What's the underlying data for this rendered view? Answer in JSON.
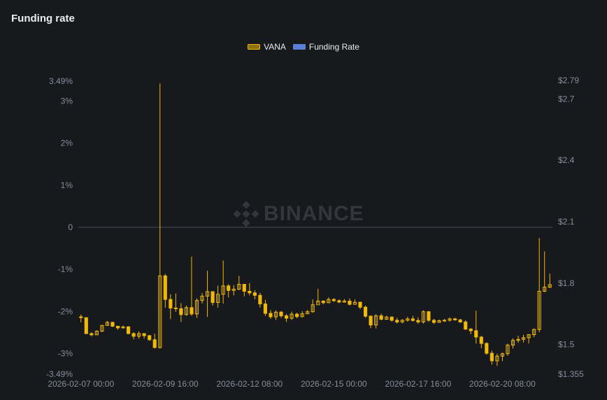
{
  "title": "Funding rate",
  "colors": {
    "price": "#f0b90b",
    "price_fill": "rgba(240,185,11,0.55)",
    "funding_rate": "#5b7fd6",
    "grid": "#474d57",
    "axis_text": "#848e9c",
    "watermark": "#34363d"
  },
  "watermark": "BINANCE",
  "chart_data": {
    "type": "candlestick",
    "legend": [
      "VANA",
      "Funding Rate"
    ],
    "legend_placement": "top-center",
    "left_axis": {
      "min": -3.49,
      "max": 3.49,
      "ticks": [
        "3.49%",
        "3%",
        "2%",
        "1%",
        "0",
        "-1%",
        "-2%",
        "-3%",
        "-3.49%"
      ]
    },
    "right_axis": {
      "min": 1.355,
      "max": 2.79,
      "ticks": [
        "$2.79",
        "$2.7",
        "$2.4",
        "$2.1",
        "$1.8",
        "$1.5",
        "$1.355"
      ]
    },
    "x_ticks": [
      "2026-02-07 00:00",
      "2026-02-09 16:00",
      "2026-02-12 08:00",
      "2026-02-15 00:00",
      "2026-02-17 16:00",
      "2026-02-20 08:00"
    ],
    "x_range": {
      "start": "2026-02-07 00:00",
      "interval_hours": 4,
      "count": 90
    },
    "zero_line": true,
    "funding_rate": [],
    "candles": [
      [
        1.635,
        1.631,
        1.646,
        1.608
      ],
      [
        1.631,
        1.553,
        1.631,
        1.551
      ],
      [
        1.553,
        1.547,
        1.559,
        1.54
      ],
      [
        1.547,
        1.565,
        1.569,
        1.548
      ],
      [
        1.565,
        1.593,
        1.596,
        1.56
      ],
      [
        1.593,
        1.608,
        1.615,
        1.592
      ],
      [
        1.608,
        1.589,
        1.611,
        1.585
      ],
      [
        1.589,
        1.581,
        1.591,
        1.572
      ],
      [
        1.581,
        1.586,
        1.592,
        1.577
      ],
      [
        1.586,
        1.553,
        1.59,
        1.55
      ],
      [
        1.553,
        1.54,
        1.56,
        1.525
      ],
      [
        1.54,
        1.553,
        1.564,
        1.528
      ],
      [
        1.553,
        1.543,
        1.555,
        1.529
      ],
      [
        1.543,
        1.523,
        1.546,
        1.518
      ],
      [
        1.523,
        1.485,
        1.553,
        1.48
      ],
      [
        1.485,
        1.835,
        2.775,
        1.48
      ],
      [
        1.835,
        1.72,
        1.845,
        1.68
      ],
      [
        1.72,
        1.678,
        1.745,
        1.624
      ],
      [
        1.678,
        1.675,
        1.749,
        1.66
      ],
      [
        1.675,
        1.646,
        1.702,
        1.61
      ],
      [
        1.646,
        1.68,
        1.69,
        1.64
      ],
      [
        1.68,
        1.649,
        1.929,
        1.64
      ],
      [
        1.649,
        1.715,
        1.725,
        1.63
      ],
      [
        1.715,
        1.736,
        1.751,
        1.7
      ],
      [
        1.736,
        1.758,
        1.86,
        1.635
      ],
      [
        1.758,
        1.705,
        1.749,
        1.69
      ],
      [
        1.705,
        1.745,
        1.787,
        1.68
      ],
      [
        1.745,
        1.786,
        1.91,
        1.7
      ],
      [
        1.786,
        1.764,
        1.795,
        1.73
      ],
      [
        1.764,
        1.77,
        1.79,
        1.74
      ],
      [
        1.77,
        1.794,
        1.835,
        1.765
      ],
      [
        1.794,
        1.76,
        1.78,
        1.735
      ],
      [
        1.76,
        1.752,
        1.8,
        1.74
      ],
      [
        1.752,
        1.74,
        1.765,
        1.72
      ],
      [
        1.74,
        1.698,
        1.752,
        1.68
      ],
      [
        1.698,
        1.652,
        1.718,
        1.64
      ],
      [
        1.652,
        1.635,
        1.668,
        1.625
      ],
      [
        1.635,
        1.658,
        1.666,
        1.62
      ],
      [
        1.658,
        1.64,
        1.664,
        1.63
      ],
      [
        1.64,
        1.628,
        1.65,
        1.61
      ],
      [
        1.628,
        1.648,
        1.66,
        1.62
      ],
      [
        1.648,
        1.636,
        1.655,
        1.628
      ],
      [
        1.636,
        1.65,
        1.662,
        1.632
      ],
      [
        1.65,
        1.66,
        1.668,
        1.648
      ],
      [
        1.66,
        1.694,
        1.72,
        1.655
      ],
      [
        1.694,
        1.712,
        1.772,
        1.7
      ],
      [
        1.712,
        1.704,
        1.715,
        1.696
      ],
      [
        1.704,
        1.72,
        1.73,
        1.704
      ],
      [
        1.72,
        1.714,
        1.726,
        1.708
      ],
      [
        1.714,
        1.707,
        1.72,
        1.702
      ],
      [
        1.707,
        1.712,
        1.722,
        1.704
      ],
      [
        1.712,
        1.696,
        1.725,
        1.69
      ],
      [
        1.696,
        1.706,
        1.72,
        1.7
      ],
      [
        1.706,
        1.682,
        1.71,
        1.673
      ],
      [
        1.682,
        1.638,
        1.69,
        1.63
      ],
      [
        1.638,
        1.595,
        1.642,
        1.58
      ],
      [
        1.595,
        1.64,
        1.648,
        1.578
      ],
      [
        1.64,
        1.623,
        1.651,
        1.618
      ],
      [
        1.623,
        1.634,
        1.64,
        1.62
      ],
      [
        1.634,
        1.618,
        1.637,
        1.612
      ],
      [
        1.618,
        1.61,
        1.63,
        1.602
      ],
      [
        1.61,
        1.618,
        1.624,
        1.603
      ],
      [
        1.618,
        1.625,
        1.635,
        1.612
      ],
      [
        1.625,
        1.617,
        1.64,
        1.612
      ],
      [
        1.617,
        1.61,
        1.632,
        1.6
      ],
      [
        1.61,
        1.66,
        1.667,
        1.602
      ],
      [
        1.66,
        1.618,
        1.663,
        1.61
      ],
      [
        1.618,
        1.608,
        1.625,
        1.6
      ],
      [
        1.608,
        1.616,
        1.622,
        1.606
      ],
      [
        1.616,
        1.618,
        1.625,
        1.61
      ],
      [
        1.618,
        1.625,
        1.632,
        1.612
      ],
      [
        1.625,
        1.62,
        1.63,
        1.616
      ],
      [
        1.62,
        1.61,
        1.625,
        1.605
      ],
      [
        1.61,
        1.575,
        1.618,
        1.57
      ],
      [
        1.575,
        1.567,
        1.58,
        1.55
      ],
      [
        1.567,
        1.536,
        1.665,
        1.505
      ],
      [
        1.536,
        1.505,
        1.542,
        1.482
      ],
      [
        1.505,
        1.457,
        1.51,
        1.45
      ],
      [
        1.457,
        1.42,
        1.47,
        1.402
      ],
      [
        1.42,
        1.443,
        1.455,
        1.395
      ],
      [
        1.443,
        1.455,
        1.46,
        1.418
      ],
      [
        1.455,
        1.497,
        1.504,
        1.445
      ],
      [
        1.497,
        1.52,
        1.53,
        1.48
      ],
      [
        1.52,
        1.525,
        1.543,
        1.508
      ],
      [
        1.525,
        1.533,
        1.547,
        1.51
      ],
      [
        1.533,
        1.548,
        1.55,
        1.505
      ],
      [
        1.548,
        1.573,
        1.579,
        1.535
      ],
      [
        1.573,
        1.76,
        2.02,
        1.56
      ],
      [
        1.76,
        1.78,
        1.955,
        1.755
      ],
      [
        1.78,
        1.792,
        1.846,
        1.775
      ]
    ]
  }
}
